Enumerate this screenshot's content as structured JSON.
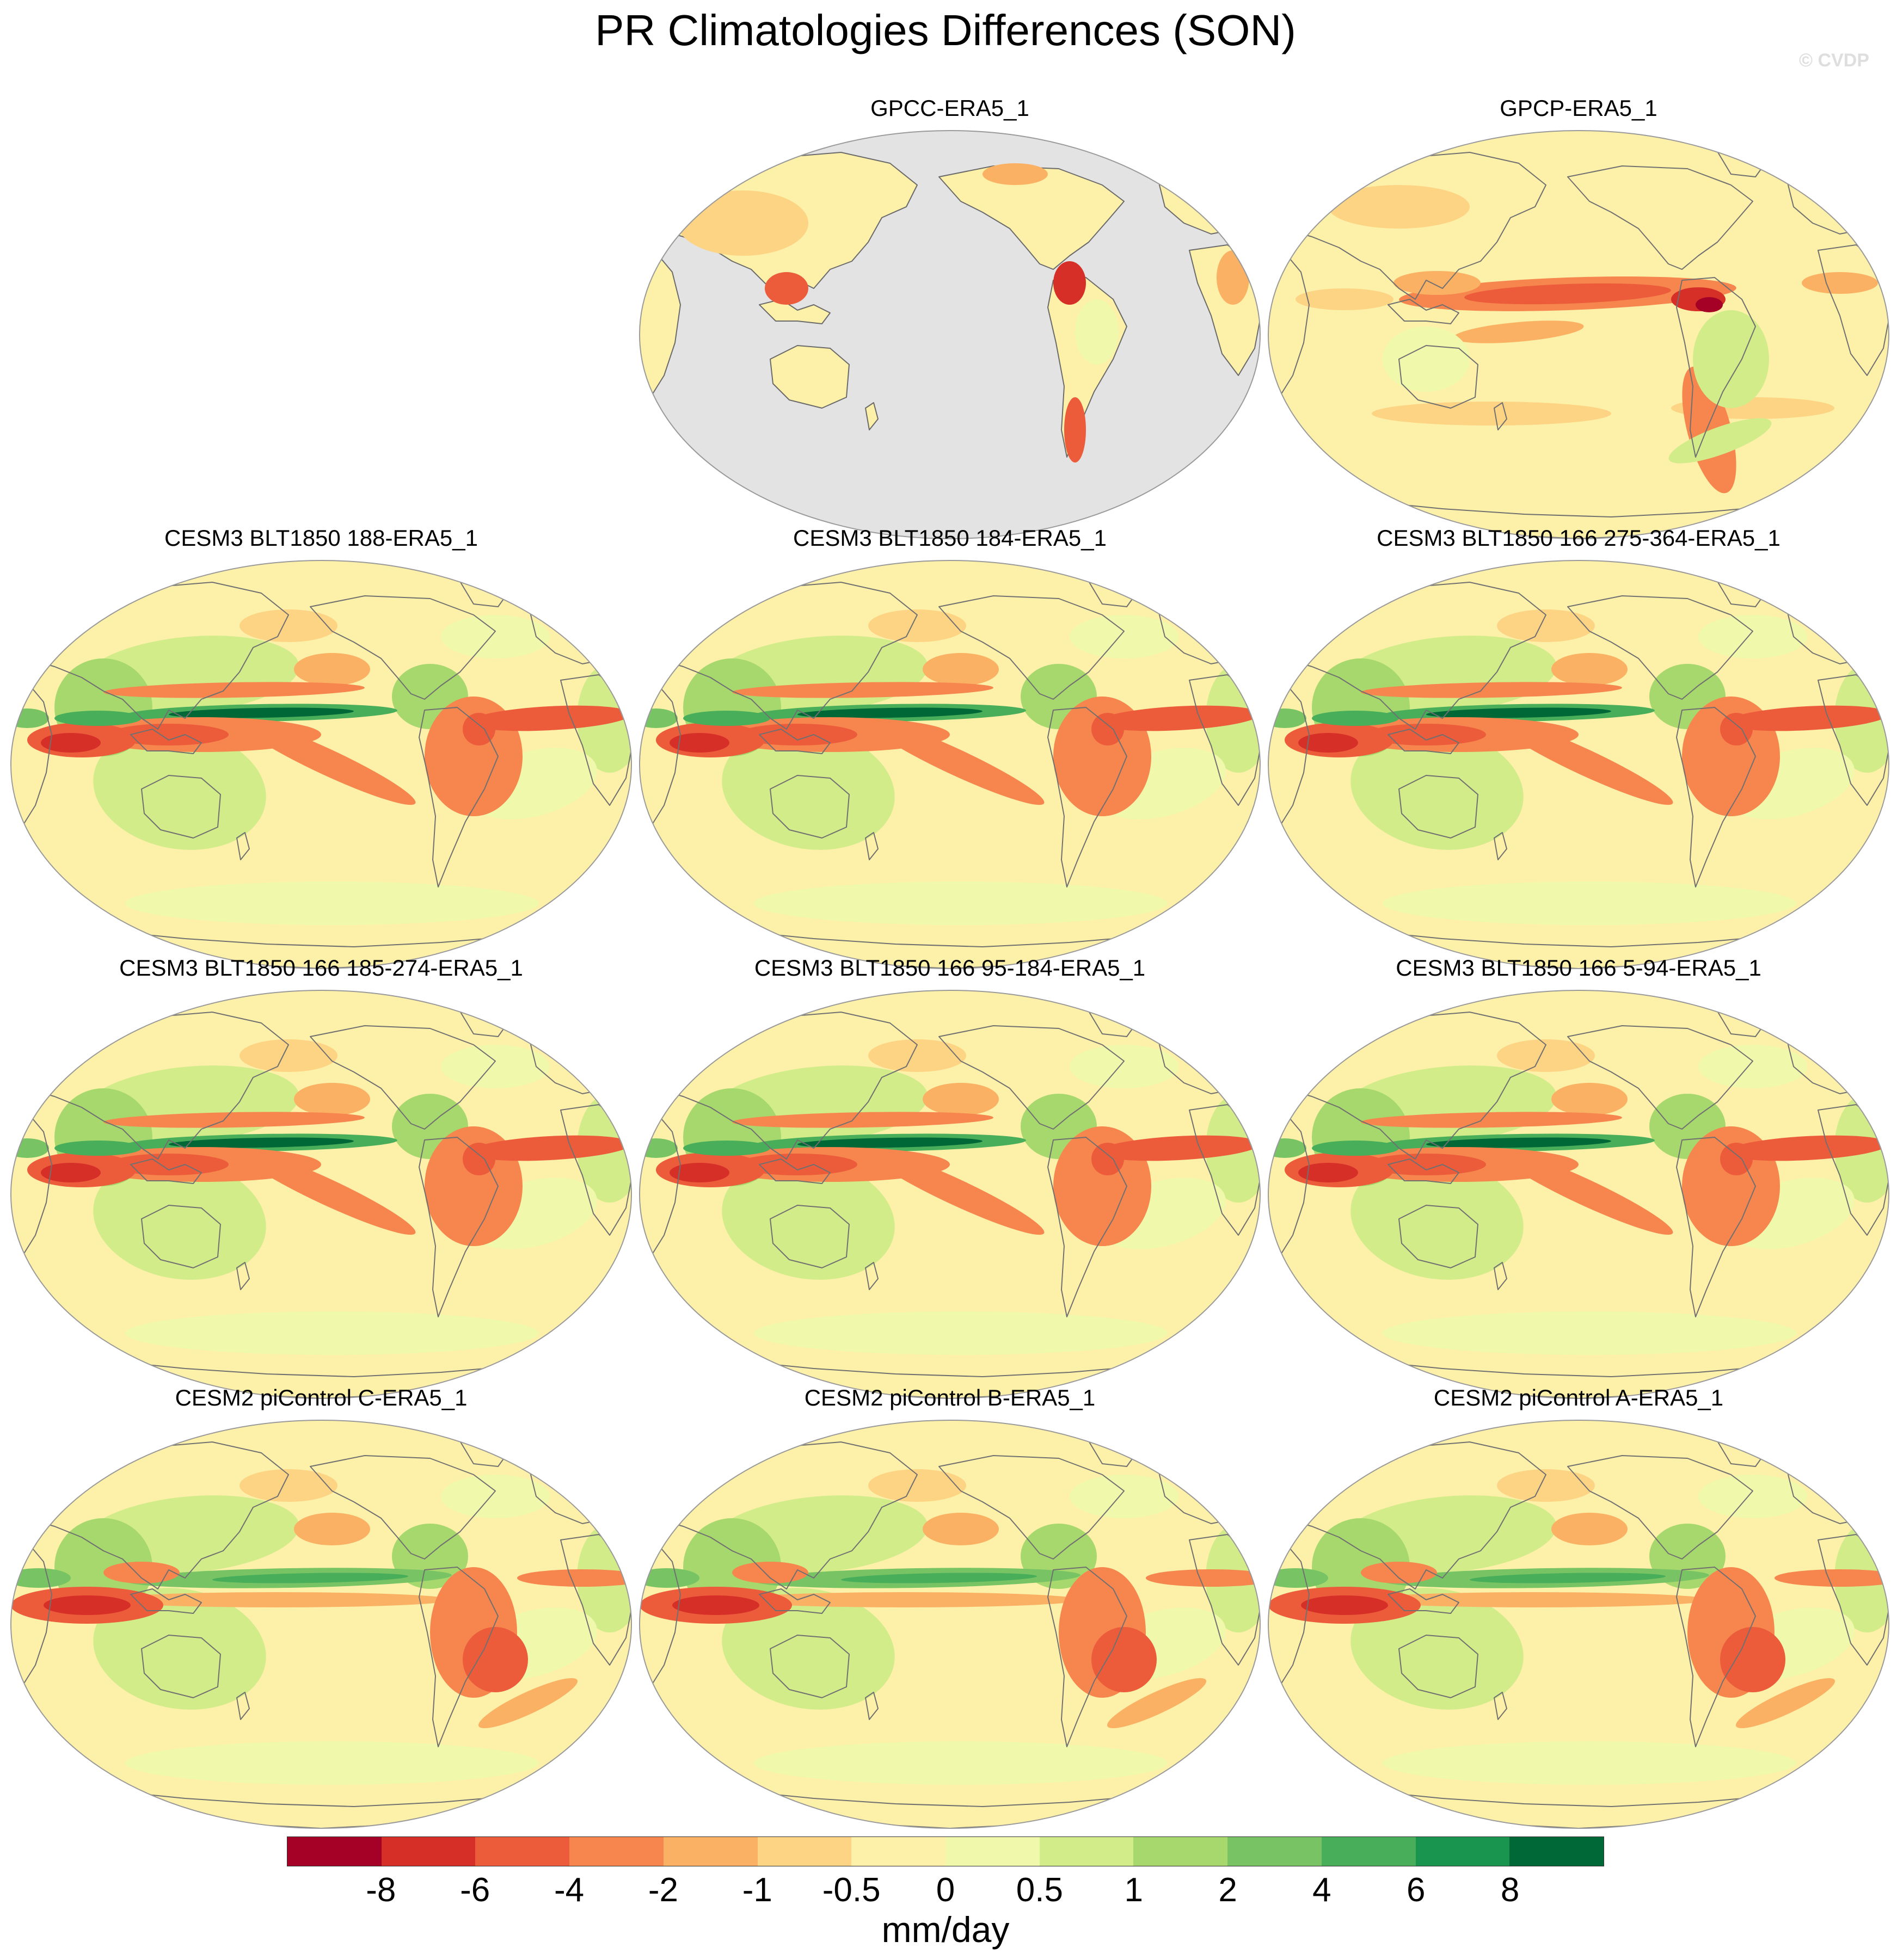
{
  "title": "PR Climatologies Differences (SON)",
  "watermark": "© CVDP",
  "panels": [
    {
      "label": "GPCC-ERA5_1",
      "variant": "land-only"
    },
    {
      "label": "GPCP-ERA5_1",
      "variant": "gpcp"
    },
    {
      "label": "CESM3 BLT1850 188-ERA5_1",
      "variant": "cesm3"
    },
    {
      "label": "CESM3 BLT1850 184-ERA5_1",
      "variant": "cesm3"
    },
    {
      "label": "CESM3 BLT1850 166 275-364-ERA5_1",
      "variant": "cesm3"
    },
    {
      "label": "CESM3 BLT1850 166 185-274-ERA5_1",
      "variant": "cesm3"
    },
    {
      "label": "CESM3 BLT1850 166 95-184-ERA5_1",
      "variant": "cesm3"
    },
    {
      "label": "CESM3 BLT1850 166 5-94-ERA5_1",
      "variant": "cesm3"
    },
    {
      "label": "CESM2 piControl C-ERA5_1",
      "variant": "cesm2"
    },
    {
      "label": "CESM2 piControl B-ERA5_1",
      "variant": "cesm2"
    },
    {
      "label": "CESM2 piControl A-ERA5_1",
      "variant": "cesm2"
    }
  ],
  "colorbar": {
    "colors": [
      "#a50026",
      "#d62f27",
      "#ec5c3b",
      "#f6854e",
      "#fbb163",
      "#fdd384",
      "#fdf0a8",
      "#f0f8ac",
      "#d2ec8a",
      "#a7d86d",
      "#78c465",
      "#48ae5a",
      "#1a9550",
      "#006837"
    ],
    "tick_labels": [
      "-8",
      "-6",
      "-4",
      "-2",
      "-1",
      "-0.5",
      "0",
      "0.5",
      "1",
      "2",
      "4",
      "6",
      "8"
    ],
    "units": "mm/day"
  }
}
